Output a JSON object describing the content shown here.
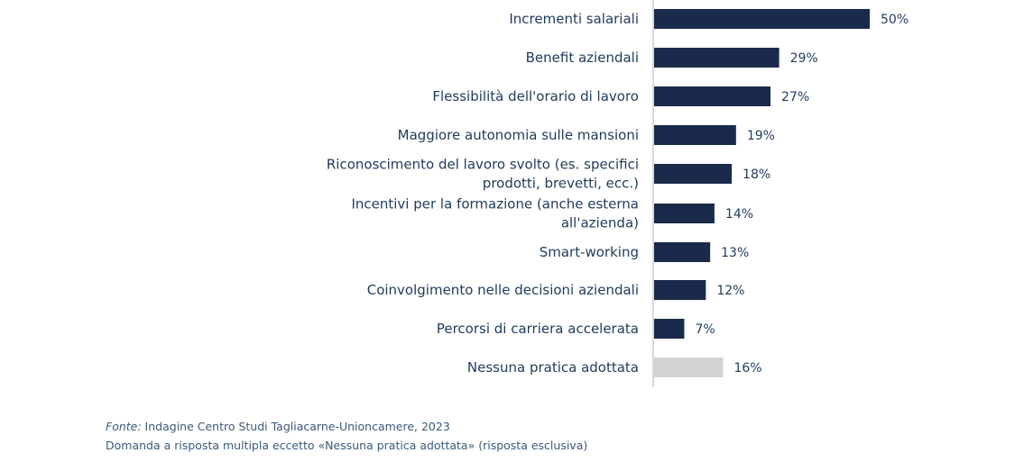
{
  "chart_data": {
    "type": "bar",
    "orientation": "horizontal",
    "categories": [
      [
        "Incrementi salariali"
      ],
      [
        "Benefit aziendali"
      ],
      [
        "Flessibilità dell'orario di lavoro"
      ],
      [
        "Maggiore autonomia sulle mansioni"
      ],
      [
        "Riconoscimento del lavoro svolto (es. specifici",
        "prodotti, brevetti, ecc.)"
      ],
      [
        "Incentivi per la formazione (anche esterna",
        "all'azienda)"
      ],
      [
        "Smart-working"
      ],
      [
        "Coinvolgimento nelle decisioni aziendali"
      ],
      [
        "Percorsi di carriera accelerata"
      ],
      [
        "Nessuna pratica adottata"
      ]
    ],
    "values": [
      50,
      29,
      27,
      19,
      18,
      14,
      13,
      12,
      7,
      16
    ],
    "value_labels": [
      "50%",
      "29%",
      "27%",
      "19%",
      "18%",
      "14%",
      "13%",
      "12%",
      "7%",
      "16%"
    ],
    "colors": [
      "#1a2a4a",
      "#1a2a4a",
      "#1a2a4a",
      "#1a2a4a",
      "#1a2a4a",
      "#1a2a4a",
      "#1a2a4a",
      "#1a2a4a",
      "#1a2a4a",
      "#d3d3d3"
    ],
    "xlim": [
      0,
      50
    ],
    "grid": false,
    "axis_color": "#d9d9d9"
  },
  "footer": {
    "source_label": "Fonte:",
    "source_text": " Indagine Centro Studi Tagliacarne-Unioncamere, 2023",
    "note": "Domanda a risposta multipla eccetto «Nessuna pratica adottata» (risposta esclusiva)"
  }
}
